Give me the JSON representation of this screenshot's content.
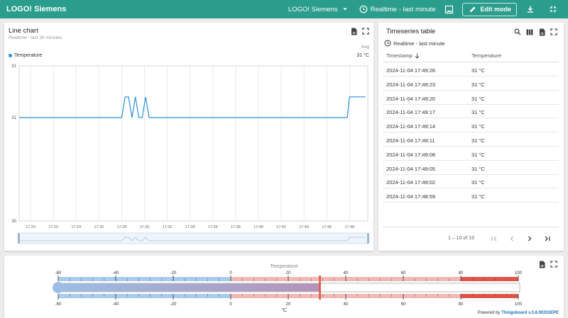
{
  "app": {
    "title": "LOGO! Siemens",
    "dashboard_selector": "LOGO! Siemens",
    "timewindow": "Realtime - last minute",
    "edit_mode": "Edit mode"
  },
  "line_chart": {
    "title": "Line chart",
    "subtitle": "Realtime - last 30 minutes",
    "legend_name": "Temperature",
    "legend_header": "Avg",
    "legend_value": "31 °C",
    "line_color": "#2b8fd6",
    "chart_data": {
      "type": "line",
      "x": [
        "17:19",
        "17:28",
        "17:28.3",
        "17:28.6",
        "17:28.9",
        "17:29.2",
        "17:29.5",
        "17:29.8",
        "17:30.1",
        "17:30.4",
        "17:47.8",
        "17:48.0",
        "17:48.3",
        "17:49.4"
      ],
      "series": [
        {
          "name": "Temperature",
          "values": [
            31,
            31,
            31.2,
            31.2,
            31,
            31.2,
            31,
            31,
            31.2,
            31,
            31,
            31.2,
            31.2,
            31.2
          ]
        }
      ],
      "ylim": [
        30,
        31.5
      ],
      "yticks": [
        "31",
        "31",
        "30"
      ],
      "xticks": [
        "17:20",
        "17:22",
        "17:24",
        "17:26",
        "17:28",
        "17:30",
        "17:32",
        "17:34",
        "17:36",
        "17:38",
        "17:40",
        "17:42",
        "17:44",
        "17:46",
        "17:48"
      ],
      "grid": true,
      "legend": "top-left"
    }
  },
  "timeseries_table": {
    "title": "Timeseries table",
    "timewindow": "Realtime - last minute",
    "col_timestamp": "Timestamp",
    "col_temperature": "Temperature",
    "rows": [
      {
        "ts": "2024-11-04 17:49:26",
        "value": "31 °C"
      },
      {
        "ts": "2024-11-04 17:49:23",
        "value": "31 °C"
      },
      {
        "ts": "2024-11-04 17:49:20",
        "value": "31 °C"
      },
      {
        "ts": "2024-11-04 17:49:17",
        "value": "31 °C"
      },
      {
        "ts": "2024-11-04 17:49:14",
        "value": "31 °C"
      },
      {
        "ts": "2024-11-04 17:49:11",
        "value": "31 °C"
      },
      {
        "ts": "2024-11-04 17:49:08",
        "value": "31 °C"
      },
      {
        "ts": "2024-11-04 17:49:05",
        "value": "31 °C"
      },
      {
        "ts": "2024-11-04 17:49:02",
        "value": "31 °C"
      },
      {
        "ts": "2024-11-04 17:48:59",
        "value": "31 °C"
      }
    ],
    "pager_text": "1 – 10 of 19"
  },
  "gauge": {
    "title": "Temperature",
    "unit": "°C",
    "ticks": [
      "-60",
      "-40",
      "-20",
      "0",
      "20",
      "40",
      "60",
      "80",
      "100"
    ],
    "min": -60,
    "max": 100,
    "value": 31,
    "powered_by_prefix": "Powered by ",
    "powered_by_link": "Thingsboard v.3.8.0EDGEPE"
  }
}
